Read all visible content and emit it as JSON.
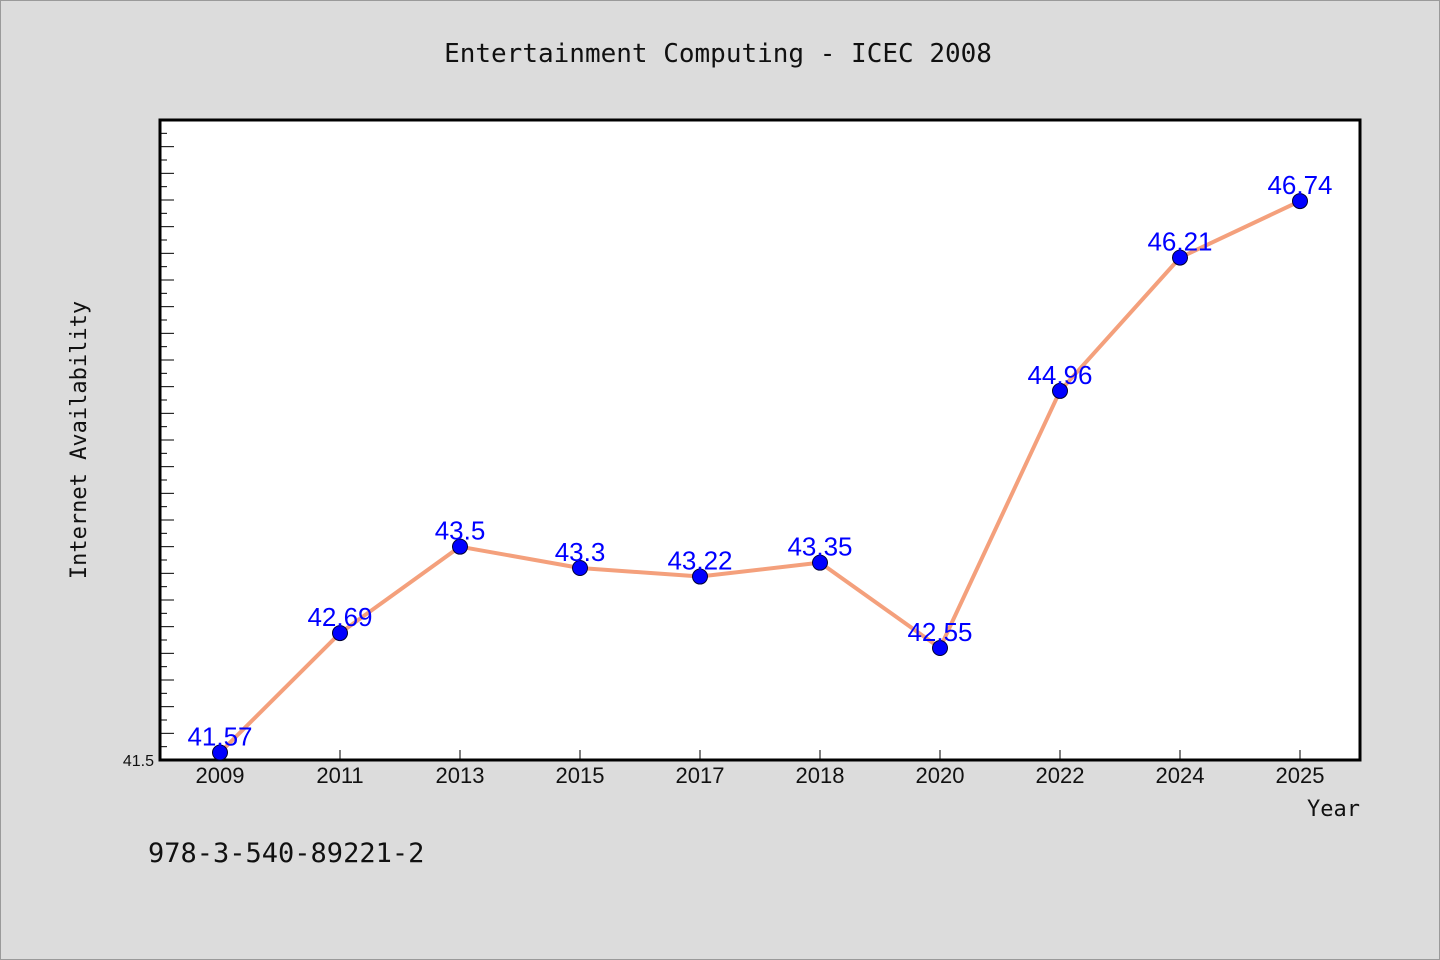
{
  "chart_data": {
    "type": "line",
    "title": "Entertainment Computing - ICEC 2008",
    "xlabel": "Year",
    "ylabel": "Internet Availability",
    "categories": [
      "2009",
      "2011",
      "2013",
      "2015",
      "2017",
      "2018",
      "2020",
      "2022",
      "2024",
      "2025"
    ],
    "series": [
      {
        "values": [
          41.57,
          42.69,
          43.5,
          43.3,
          43.22,
          43.35,
          42.55,
          44.96,
          46.21,
          46.74
        ]
      }
    ],
    "data_labels": [
      "41.57",
      "42.69",
      "43.5",
      "43.3",
      "43.22",
      "43.35",
      "42.55",
      "44.96",
      "46.21",
      "46.74"
    ],
    "ylim": [
      41.5,
      47.5
    ],
    "ytick_labels": [
      "41.5"
    ],
    "grid": false,
    "line_color": "#f4a07c",
    "marker_color": "#0000ff",
    "label_color": "#0000ff",
    "footnote": "978-3-540-89221-2"
  }
}
